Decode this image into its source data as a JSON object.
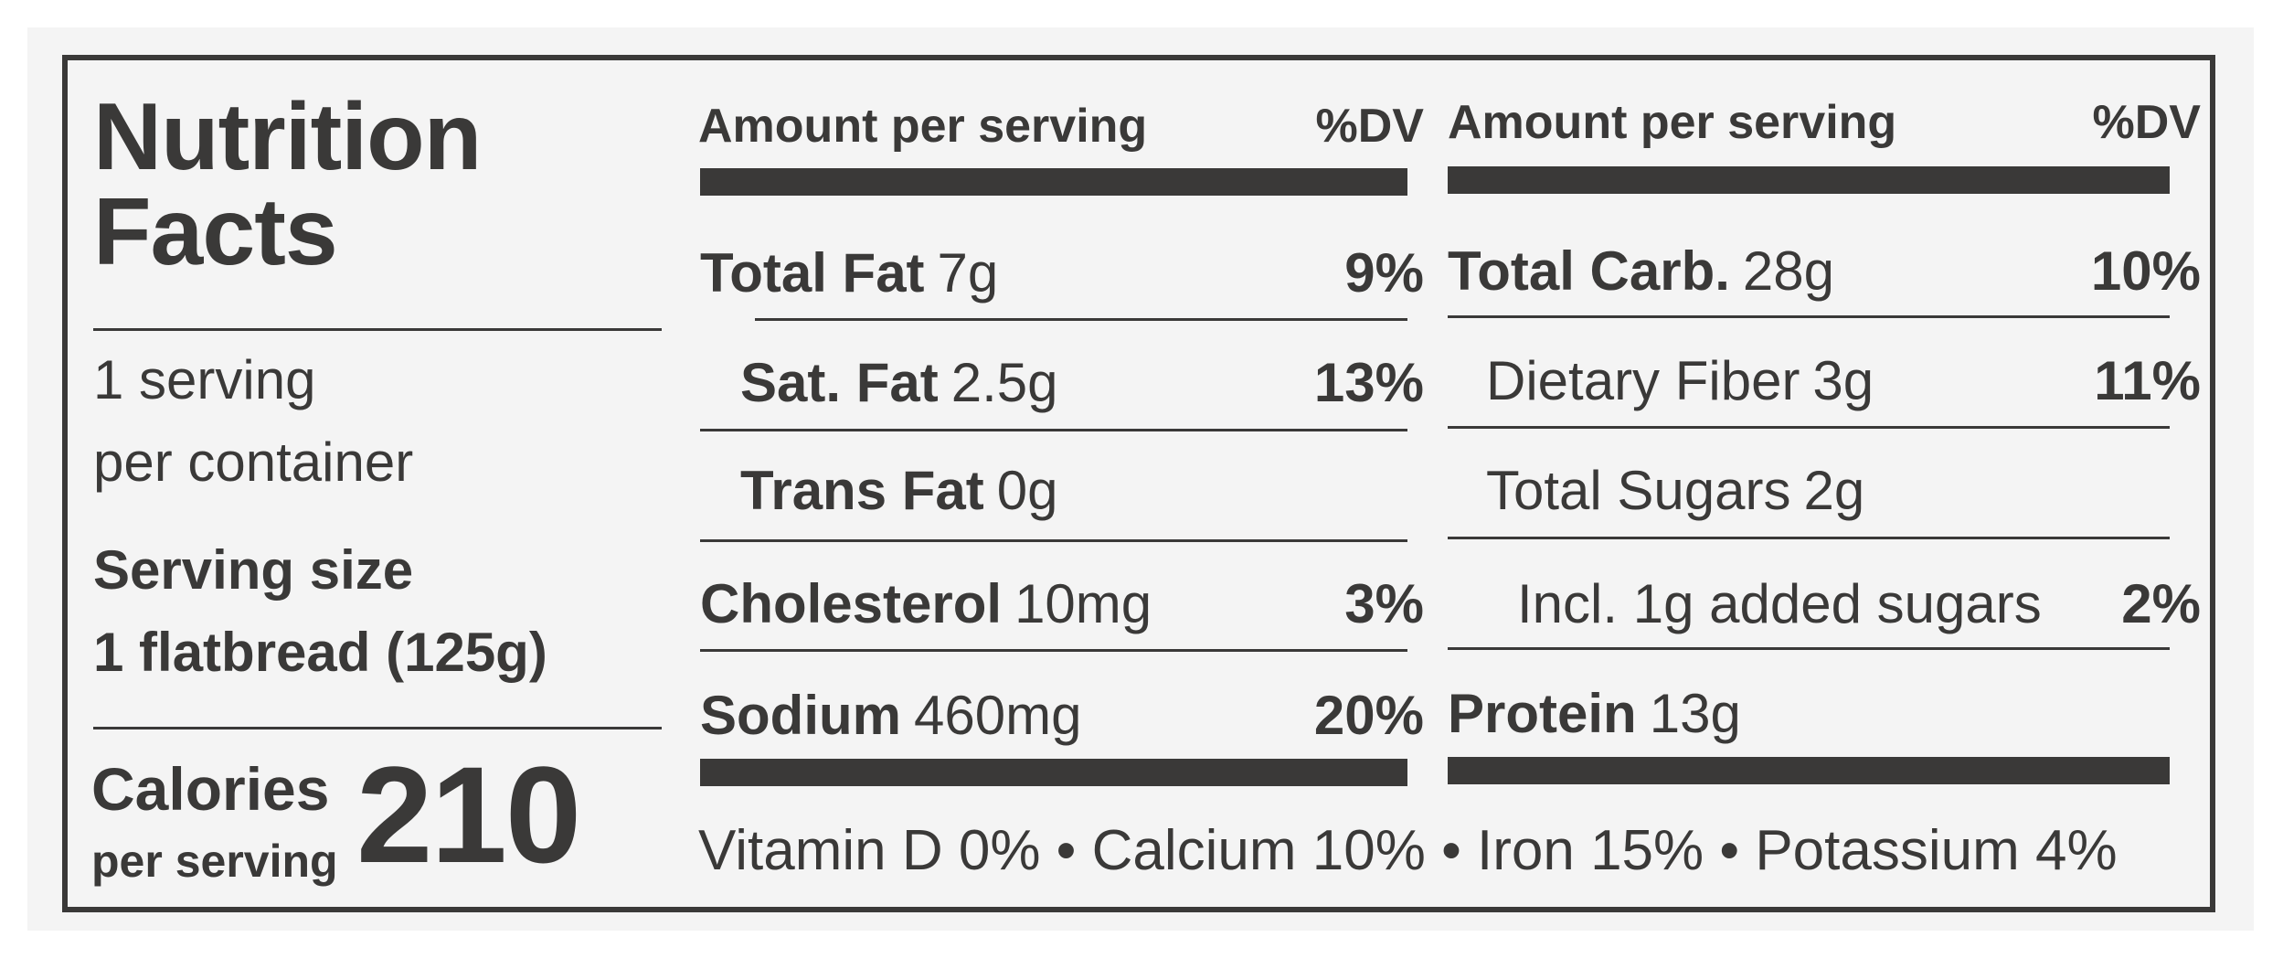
{
  "title_line1": "Nutrition",
  "title_line2": "Facts",
  "servings_line1": "1 serving",
  "servings_line2": "per container",
  "serving_size_label": "Serving size",
  "serving_size_value": "1 flatbread (125g)",
  "calories_label": "Calories",
  "calories_sub": "per serving",
  "calories_value": "210",
  "left_header": {
    "amount": "Amount per serving",
    "dv": "%DV"
  },
  "right_header": {
    "amount": "Amount per serving",
    "dv": "%DV"
  },
  "left_rows": [
    {
      "name": "Total Fat",
      "amount": "7g",
      "dv": "9%"
    },
    {
      "name": "Sat. Fat",
      "amount": "2.5g",
      "dv": "13%"
    },
    {
      "name": "Trans Fat",
      "amount": "0g",
      "dv": ""
    },
    {
      "name": "Cholesterol",
      "amount": "10mg",
      "dv": "3%"
    },
    {
      "name": "Sodium",
      "amount": "460mg",
      "dv": "20%"
    }
  ],
  "right_rows": [
    {
      "name": "Total Carb.",
      "amount": "28g",
      "dv": "10%"
    },
    {
      "name": "Dietary Fiber",
      "amount": "3g",
      "dv": "11%"
    },
    {
      "name": "Total Sugars",
      "amount": "2g",
      "dv": ""
    },
    {
      "name": "Incl. 1g added sugars",
      "amount": "",
      "dv": "2%"
    },
    {
      "name": "Protein",
      "amount": "13g",
      "dv": ""
    }
  ],
  "vitamins": "Vitamin D 0% • Calcium 10% • Iron 15% • Potassium 4%"
}
